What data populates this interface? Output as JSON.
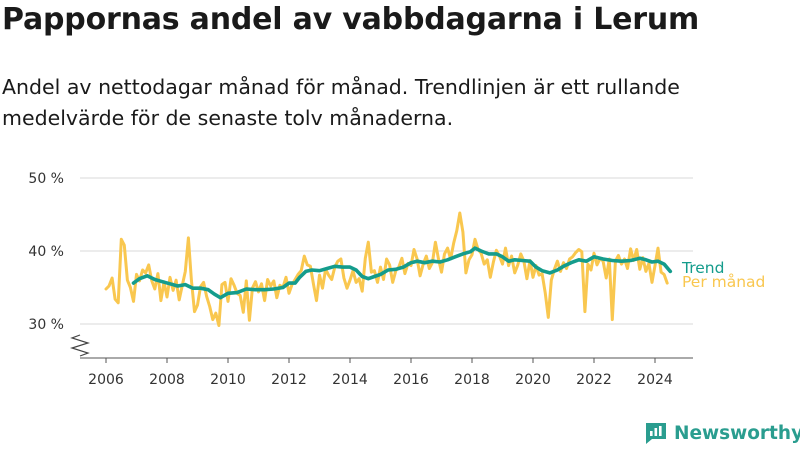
{
  "header": {
    "title": "Pappornas andel av vabbdagarna i Lerum",
    "subtitle": "Andel av nettodagar månad för månad. Trendlinjen är ett rullande medelvärde för de senaste tolv månaderna."
  },
  "brand": {
    "name": "Newsworthy",
    "icon": "newsworthy-logo-icon",
    "color": "#2a9d8f"
  },
  "chart_data": {
    "type": "line",
    "x_unit": "year",
    "y_unit": "%",
    "ylim": [
      30,
      50
    ],
    "xlim": [
      2005.5,
      2024.6
    ],
    "yticks": [
      30,
      40,
      50
    ],
    "ytick_labels": [
      "30 %",
      "40 %",
      "50 %"
    ],
    "xticks": [
      2006,
      2008,
      2010,
      2012,
      2014,
      2016,
      2018,
      2020,
      2022,
      2024
    ],
    "xtick_labels": [
      "2006",
      "2008",
      "2010",
      "2012",
      "2014",
      "2016",
      "2018",
      "2020",
      "2022",
      "2024"
    ],
    "axis_break": true,
    "grid": "horizontal",
    "legend_placement": "right, at line ends",
    "series": [
      {
        "name": "Per månad",
        "color": "#f9c74f",
        "points": [
          [
            2006.0,
            34.8
          ],
          [
            2006.1,
            35.2
          ],
          [
            2006.2,
            36.3
          ],
          [
            2006.3,
            33.4
          ],
          [
            2006.4,
            32.9
          ],
          [
            2006.5,
            41.6
          ],
          [
            2006.6,
            40.8
          ],
          [
            2006.7,
            36.0
          ],
          [
            2006.8,
            35.0
          ],
          [
            2006.9,
            33.1
          ],
          [
            2007.0,
            36.8
          ],
          [
            2007.1,
            35.9
          ],
          [
            2007.2,
            37.4
          ],
          [
            2007.3,
            37.0
          ],
          [
            2007.4,
            38.1
          ],
          [
            2007.5,
            35.9
          ],
          [
            2007.6,
            34.8
          ],
          [
            2007.7,
            36.9
          ],
          [
            2007.8,
            33.2
          ],
          [
            2007.9,
            35.8
          ],
          [
            2008.0,
            33.7
          ],
          [
            2008.1,
            36.4
          ],
          [
            2008.2,
            34.6
          ],
          [
            2008.3,
            36.0
          ],
          [
            2008.4,
            33.3
          ],
          [
            2008.5,
            35.3
          ],
          [
            2008.6,
            37.2
          ],
          [
            2008.7,
            41.8
          ],
          [
            2008.8,
            36.0
          ],
          [
            2008.9,
            31.7
          ],
          [
            2009.0,
            32.6
          ],
          [
            2009.1,
            35.1
          ],
          [
            2009.2,
            35.7
          ],
          [
            2009.3,
            33.8
          ],
          [
            2009.4,
            32.4
          ],
          [
            2009.5,
            30.6
          ],
          [
            2009.6,
            31.5
          ],
          [
            2009.7,
            29.8
          ],
          [
            2009.8,
            35.4
          ],
          [
            2009.9,
            35.7
          ],
          [
            2010.0,
            33.1
          ],
          [
            2010.1,
            36.2
          ],
          [
            2010.2,
            35.3
          ],
          [
            2010.3,
            34.2
          ],
          [
            2010.4,
            33.9
          ],
          [
            2010.5,
            31.6
          ],
          [
            2010.6,
            35.9
          ],
          [
            2010.7,
            30.5
          ],
          [
            2010.8,
            34.9
          ],
          [
            2010.9,
            35.8
          ],
          [
            2011.0,
            34.4
          ],
          [
            2011.1,
            35.5
          ],
          [
            2011.2,
            33.2
          ],
          [
            2011.3,
            36.1
          ],
          [
            2011.4,
            35.2
          ],
          [
            2011.5,
            35.9
          ],
          [
            2011.6,
            33.6
          ],
          [
            2011.7,
            35.3
          ],
          [
            2011.8,
            35.0
          ],
          [
            2011.9,
            36.4
          ],
          [
            2012.0,
            34.2
          ],
          [
            2012.1,
            35.4
          ],
          [
            2012.2,
            36.1
          ],
          [
            2012.3,
            36.8
          ],
          [
            2012.4,
            37.3
          ],
          [
            2012.5,
            39.3
          ],
          [
            2012.6,
            38.1
          ],
          [
            2012.7,
            37.9
          ],
          [
            2012.8,
            35.5
          ],
          [
            2012.9,
            33.2
          ],
          [
            2013.0,
            36.7
          ],
          [
            2013.1,
            34.9
          ],
          [
            2013.2,
            37.5
          ],
          [
            2013.3,
            36.7
          ],
          [
            2013.4,
            36.1
          ],
          [
            2013.5,
            37.8
          ],
          [
            2013.6,
            38.6
          ],
          [
            2013.7,
            38.9
          ],
          [
            2013.8,
            36.3
          ],
          [
            2013.9,
            34.9
          ],
          [
            2014.0,
            36.0
          ],
          [
            2014.1,
            37.3
          ],
          [
            2014.2,
            35.7
          ],
          [
            2014.3,
            36.2
          ],
          [
            2014.4,
            34.5
          ],
          [
            2014.5,
            39.0
          ],
          [
            2014.6,
            41.2
          ],
          [
            2014.7,
            37.1
          ],
          [
            2014.8,
            37.3
          ],
          [
            2014.9,
            35.7
          ],
          [
            2015.0,
            37.8
          ],
          [
            2015.1,
            36.1
          ],
          [
            2015.2,
            38.9
          ],
          [
            2015.3,
            38.1
          ],
          [
            2015.4,
            35.7
          ],
          [
            2015.5,
            37.3
          ],
          [
            2015.6,
            37.8
          ],
          [
            2015.7,
            39.0
          ],
          [
            2015.8,
            36.9
          ],
          [
            2015.9,
            38.3
          ],
          [
            2016.0,
            38.0
          ],
          [
            2016.1,
            40.2
          ],
          [
            2016.2,
            38.9
          ],
          [
            2016.3,
            36.6
          ],
          [
            2016.4,
            38.2
          ],
          [
            2016.5,
            39.3
          ],
          [
            2016.6,
            37.6
          ],
          [
            2016.7,
            38.4
          ],
          [
            2016.8,
            41.2
          ],
          [
            2016.9,
            38.9
          ],
          [
            2017.0,
            37.1
          ],
          [
            2017.1,
            39.6
          ],
          [
            2017.2,
            40.4
          ],
          [
            2017.3,
            38.9
          ],
          [
            2017.4,
            41.1
          ],
          [
            2017.5,
            42.8
          ],
          [
            2017.6,
            45.2
          ],
          [
            2017.7,
            42.6
          ],
          [
            2017.8,
            37.0
          ],
          [
            2017.9,
            38.8
          ],
          [
            2018.0,
            39.5
          ],
          [
            2018.1,
            41.6
          ],
          [
            2018.2,
            40.2
          ],
          [
            2018.3,
            39.7
          ],
          [
            2018.4,
            38.2
          ],
          [
            2018.5,
            38.8
          ],
          [
            2018.6,
            36.4
          ],
          [
            2018.7,
            38.5
          ],
          [
            2018.8,
            40.1
          ],
          [
            2018.9,
            39.3
          ],
          [
            2019.0,
            38.2
          ],
          [
            2019.1,
            40.4
          ],
          [
            2019.2,
            38.0
          ],
          [
            2019.3,
            39.3
          ],
          [
            2019.4,
            37.0
          ],
          [
            2019.5,
            38.1
          ],
          [
            2019.6,
            39.6
          ],
          [
            2019.7,
            38.6
          ],
          [
            2019.8,
            36.2
          ],
          [
            2019.9,
            38.7
          ],
          [
            2020.0,
            36.4
          ],
          [
            2020.1,
            38.0
          ],
          [
            2020.2,
            36.7
          ],
          [
            2020.3,
            36.9
          ],
          [
            2020.4,
            34.3
          ],
          [
            2020.5,
            30.9
          ],
          [
            2020.6,
            36.0
          ],
          [
            2020.7,
            37.5
          ],
          [
            2020.8,
            38.6
          ],
          [
            2020.9,
            37.2
          ],
          [
            2021.0,
            38.4
          ],
          [
            2021.1,
            37.6
          ],
          [
            2021.2,
            38.9
          ],
          [
            2021.3,
            39.2
          ],
          [
            2021.4,
            39.8
          ],
          [
            2021.5,
            40.2
          ],
          [
            2021.6,
            39.9
          ],
          [
            2021.7,
            31.7
          ],
          [
            2021.8,
            38.2
          ],
          [
            2021.9,
            37.4
          ],
          [
            2022.0,
            39.7
          ],
          [
            2022.1,
            38.1
          ],
          [
            2022.2,
            39.0
          ],
          [
            2022.3,
            38.6
          ],
          [
            2022.4,
            36.3
          ],
          [
            2022.5,
            38.9
          ],
          [
            2022.6,
            30.6
          ],
          [
            2022.7,
            38.6
          ],
          [
            2022.8,
            39.4
          ],
          [
            2022.9,
            38.2
          ],
          [
            2023.0,
            38.9
          ],
          [
            2023.1,
            37.6
          ],
          [
            2023.2,
            40.3
          ],
          [
            2023.3,
            38.7
          ],
          [
            2023.4,
            40.2
          ],
          [
            2023.5,
            37.5
          ],
          [
            2023.6,
            39.1
          ],
          [
            2023.7,
            37.2
          ],
          [
            2023.8,
            38.3
          ],
          [
            2023.9,
            35.7
          ],
          [
            2024.0,
            38.0
          ],
          [
            2024.1,
            40.4
          ],
          [
            2024.2,
            37.1
          ],
          [
            2024.3,
            36.8
          ],
          [
            2024.4,
            35.6
          ]
        ]
      },
      {
        "name": "Trend",
        "color": "#149c8c",
        "points": [
          [
            2006.9,
            35.6
          ],
          [
            2007.1,
            36.2
          ],
          [
            2007.35,
            36.6
          ],
          [
            2007.6,
            36.1
          ],
          [
            2007.85,
            35.8
          ],
          [
            2008.1,
            35.5
          ],
          [
            2008.35,
            35.2
          ],
          [
            2008.6,
            35.4
          ],
          [
            2008.85,
            34.9
          ],
          [
            2009.1,
            34.9
          ],
          [
            2009.35,
            34.7
          ],
          [
            2009.55,
            34.1
          ],
          [
            2009.75,
            33.6
          ],
          [
            2010.0,
            34.2
          ],
          [
            2010.3,
            34.3
          ],
          [
            2010.6,
            34.8
          ],
          [
            2010.9,
            34.7
          ],
          [
            2011.2,
            34.7
          ],
          [
            2011.5,
            34.8
          ],
          [
            2011.8,
            35.0
          ],
          [
            2012.0,
            35.6
          ],
          [
            2012.2,
            35.6
          ],
          [
            2012.35,
            36.4
          ],
          [
            2012.55,
            37.2
          ],
          [
            2012.75,
            37.4
          ],
          [
            2013.0,
            37.3
          ],
          [
            2013.25,
            37.6
          ],
          [
            2013.5,
            37.9
          ],
          [
            2013.75,
            37.8
          ],
          [
            2014.0,
            37.8
          ],
          [
            2014.2,
            37.4
          ],
          [
            2014.4,
            36.5
          ],
          [
            2014.6,
            36.2
          ],
          [
            2014.8,
            36.5
          ],
          [
            2015.0,
            36.8
          ],
          [
            2015.25,
            37.4
          ],
          [
            2015.5,
            37.5
          ],
          [
            2015.75,
            37.8
          ],
          [
            2016.0,
            38.4
          ],
          [
            2016.2,
            38.6
          ],
          [
            2016.45,
            38.4
          ],
          [
            2016.7,
            38.6
          ],
          [
            2016.95,
            38.5
          ],
          [
            2017.2,
            38.8
          ],
          [
            2017.45,
            39.2
          ],
          [
            2017.7,
            39.6
          ],
          [
            2017.95,
            39.9
          ],
          [
            2018.1,
            40.4
          ],
          [
            2018.3,
            40.0
          ],
          [
            2018.55,
            39.6
          ],
          [
            2018.8,
            39.6
          ],
          [
            2019.0,
            39.2
          ],
          [
            2019.2,
            38.6
          ],
          [
            2019.4,
            38.8
          ],
          [
            2019.65,
            38.7
          ],
          [
            2019.9,
            38.6
          ],
          [
            2020.1,
            37.8
          ],
          [
            2020.3,
            37.3
          ],
          [
            2020.55,
            37.0
          ],
          [
            2020.8,
            37.4
          ],
          [
            2021.0,
            37.9
          ],
          [
            2021.25,
            38.4
          ],
          [
            2021.5,
            38.8
          ],
          [
            2021.75,
            38.6
          ],
          [
            2022.0,
            39.2
          ],
          [
            2022.3,
            38.9
          ],
          [
            2022.6,
            38.7
          ],
          [
            2022.9,
            38.6
          ],
          [
            2023.2,
            38.7
          ],
          [
            2023.5,
            39.0
          ],
          [
            2023.7,
            38.8
          ],
          [
            2023.9,
            38.5
          ],
          [
            2024.1,
            38.6
          ],
          [
            2024.3,
            38.2
          ],
          [
            2024.5,
            37.2
          ]
        ]
      }
    ]
  }
}
